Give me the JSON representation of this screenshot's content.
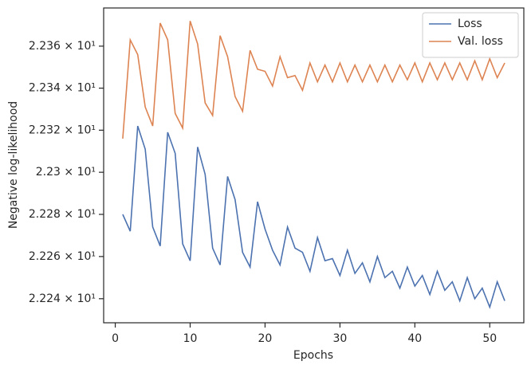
{
  "chart_data": {
    "type": "line",
    "xlabel": "Epochs",
    "ylabel": "Negative log-likelihood",
    "yscale": "log",
    "legend": "upper right",
    "x": [
      1,
      2,
      3,
      4,
      5,
      6,
      7,
      8,
      9,
      10,
      11,
      12,
      13,
      14,
      15,
      16,
      17,
      18,
      19,
      20,
      21,
      22,
      23,
      24,
      25,
      26,
      27,
      28,
      29,
      30,
      31,
      32,
      33,
      34,
      35,
      36,
      37,
      38,
      39,
      40,
      41,
      42,
      43,
      44,
      45,
      46,
      47,
      48,
      49,
      50,
      51,
      52
    ],
    "series": [
      {
        "name": "Loss",
        "color": "#4c72b0",
        "values": [
          22.28,
          22.272,
          22.322,
          22.311,
          22.274,
          22.265,
          22.319,
          22.309,
          22.266,
          22.258,
          22.312,
          22.299,
          22.264,
          22.256,
          22.298,
          22.287,
          22.262,
          22.255,
          22.286,
          22.273,
          22.263,
          22.256,
          22.274,
          22.264,
          22.262,
          22.253,
          22.269,
          22.258,
          22.259,
          22.251,
          22.263,
          22.252,
          22.257,
          22.248,
          22.26,
          22.25,
          22.253,
          22.245,
          22.255,
          22.246,
          22.251,
          22.242,
          22.253,
          22.244,
          22.248,
          22.239,
          22.25,
          22.24,
          22.245,
          22.236,
          22.248,
          22.239
        ]
      },
      {
        "name": "Val. loss",
        "color": "#dd8452",
        "values": [
          22.316,
          22.363,
          22.356,
          22.331,
          22.322,
          22.371,
          22.363,
          22.328,
          22.321,
          22.372,
          22.361,
          22.333,
          22.327,
          22.365,
          22.355,
          22.336,
          22.329,
          22.358,
          22.349,
          22.348,
          22.341,
          22.355,
          22.345,
          22.346,
          22.339,
          22.352,
          22.343,
          22.351,
          22.343,
          22.352,
          22.343,
          22.351,
          22.343,
          22.351,
          22.343,
          22.351,
          22.343,
          22.351,
          22.344,
          22.352,
          22.343,
          22.352,
          22.344,
          22.352,
          22.344,
          22.352,
          22.344,
          22.353,
          22.344,
          22.354,
          22.345,
          22.352
        ]
      }
    ],
    "xlim": [
      -1.55,
      54.55
    ],
    "xticks": [
      0,
      10,
      20,
      30,
      40,
      50
    ],
    "ylim": [
      22.2286,
      22.3782
    ],
    "yticks": [
      {
        "value": 22.24,
        "label": "2.224 × 10¹"
      },
      {
        "value": 22.26,
        "label": "2.226 × 10¹"
      },
      {
        "value": 22.28,
        "label": "2.228 × 10¹"
      },
      {
        "value": 22.3,
        "label": "2.23 × 10¹"
      },
      {
        "value": 22.32,
        "label": "2.232 × 10¹"
      },
      {
        "value": 22.34,
        "label": "2.234 × 10¹"
      },
      {
        "value": 22.36,
        "label": "2.236 × 10¹"
      }
    ]
  }
}
